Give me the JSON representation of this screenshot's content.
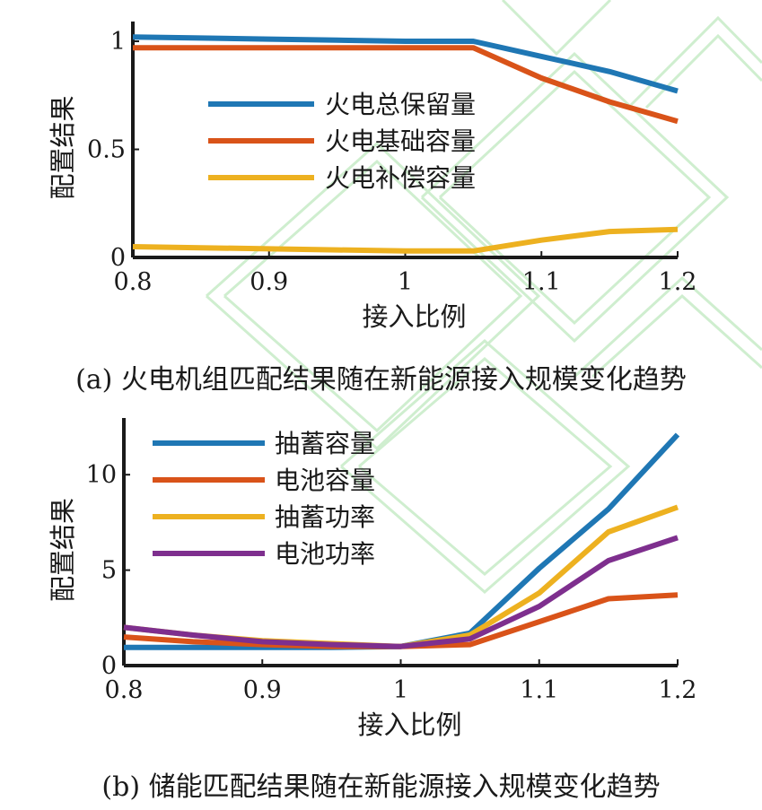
{
  "chart_data": [
    {
      "type": "line",
      "caption": "(a)  火电机组匹配结果随在新能源接入规模变化趋势",
      "xlabel": "接入比例",
      "ylabel": "配置结果",
      "x": [
        0.8,
        0.85,
        0.9,
        0.95,
        1.0,
        1.05,
        1.1,
        1.15,
        1.2
      ],
      "xlim": [
        0.8,
        1.2
      ],
      "ylim": [
        0,
        1.05
      ],
      "xticks": [
        "0.8",
        "0.9",
        "1",
        "1.1",
        "1.2"
      ],
      "xtick_values": [
        0.8,
        0.9,
        1.0,
        1.1,
        1.2
      ],
      "yticks": [
        "0",
        "0.5",
        "1"
      ],
      "ytick_values": [
        0,
        0.5,
        1
      ],
      "legend_position": "center",
      "series": [
        {
          "name": "火电总保留量",
          "color": "#1f77b4",
          "values": [
            1.02,
            1.015,
            1.01,
            1.005,
            1.0,
            1.0,
            0.93,
            0.86,
            0.77
          ]
        },
        {
          "name": "火电基础容量",
          "color": "#d95319",
          "values": [
            0.97,
            0.97,
            0.97,
            0.97,
            0.97,
            0.97,
            0.83,
            0.72,
            0.63
          ]
        },
        {
          "name": "火电补偿容量",
          "color": "#edb120",
          "values": [
            0.05,
            0.045,
            0.04,
            0.035,
            0.03,
            0.03,
            0.08,
            0.12,
            0.13
          ]
        }
      ]
    },
    {
      "type": "line",
      "caption": "(b)  储能匹配结果随在新能源接入规模变化趋势",
      "xlabel": "接入比例",
      "ylabel": "配置结果",
      "x": [
        0.8,
        0.85,
        0.9,
        0.95,
        1.0,
        1.05,
        1.1,
        1.15,
        1.2
      ],
      "xlim": [
        0.8,
        1.2
      ],
      "ylim": [
        0,
        12.5
      ],
      "xticks": [
        "0.8",
        "0.9",
        "1",
        "1.1",
        "1.2"
      ],
      "xtick_values": [
        0.8,
        0.9,
        1.0,
        1.1,
        1.2
      ],
      "yticks": [
        "0",
        "5",
        "10"
      ],
      "ytick_values": [
        0,
        5,
        10
      ],
      "legend_position": "top-left",
      "series": [
        {
          "name": "抽蓄容量",
          "color": "#1f77b4",
          "values": [
            0.95,
            0.95,
            0.95,
            0.95,
            1.0,
            1.7,
            5.1,
            8.2,
            12.1
          ]
        },
        {
          "name": "电池容量",
          "color": "#d95319",
          "values": [
            1.5,
            1.25,
            1.1,
            1.0,
            1.0,
            1.1,
            2.3,
            3.5,
            3.7
          ]
        },
        {
          "name": "抽蓄功率",
          "color": "#edb120",
          "values": [
            2.0,
            1.6,
            1.3,
            1.15,
            1.0,
            1.6,
            3.8,
            7.0,
            8.3
          ]
        },
        {
          "name": "电池功率",
          "color": "#7e2f8e",
          "values": [
            2.0,
            1.6,
            1.25,
            1.1,
            1.0,
            1.4,
            3.1,
            5.5,
            6.7
          ]
        }
      ]
    }
  ]
}
